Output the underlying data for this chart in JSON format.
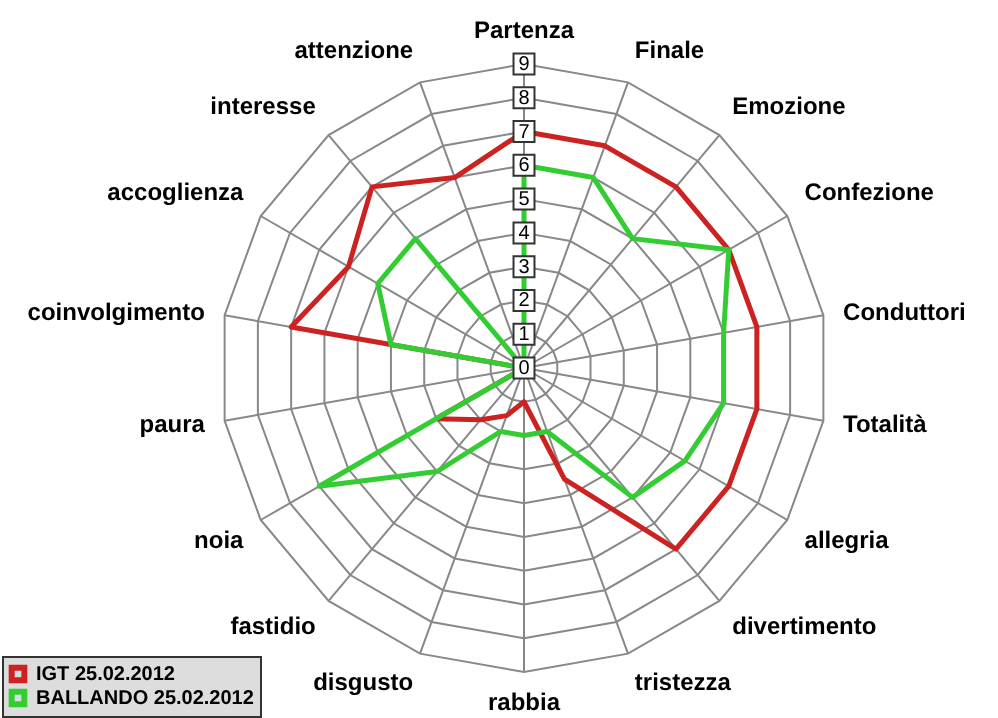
{
  "chart_data": {
    "type": "radar",
    "categories": [
      "Partenza",
      "Finale",
      "Emozione",
      "Confezione",
      "Conduttori",
      "Totalità",
      "allegria",
      "divertimento",
      "tristezza",
      "rabbia",
      "disgusto",
      "fastidio",
      "noia",
      "paura",
      "coinvolgimento",
      "accoglienza",
      "interesse",
      "attenzione"
    ],
    "series": [
      {
        "name": "IGT 25.02.2012",
        "color": "#cc2222",
        "values": [
          7,
          7,
          7,
          7,
          7,
          7,
          7,
          7,
          3.5,
          1,
          1.5,
          2,
          3,
          0,
          7,
          6,
          7,
          6
        ]
      },
      {
        "name": "BALLANDO 25.02.2012",
        "color": "#33cc33",
        "values": [
          6,
          6,
          5,
          7,
          6,
          6,
          5.5,
          5,
          2,
          2,
          2,
          4,
          7,
          0,
          4,
          5,
          5,
          0
        ]
      }
    ],
    "ylim": [
      0,
      9
    ],
    "yticks": [
      0,
      1,
      2,
      3,
      4,
      5,
      6,
      7,
      8,
      9
    ],
    "grid": true,
    "legend": "bottom left"
  }
}
